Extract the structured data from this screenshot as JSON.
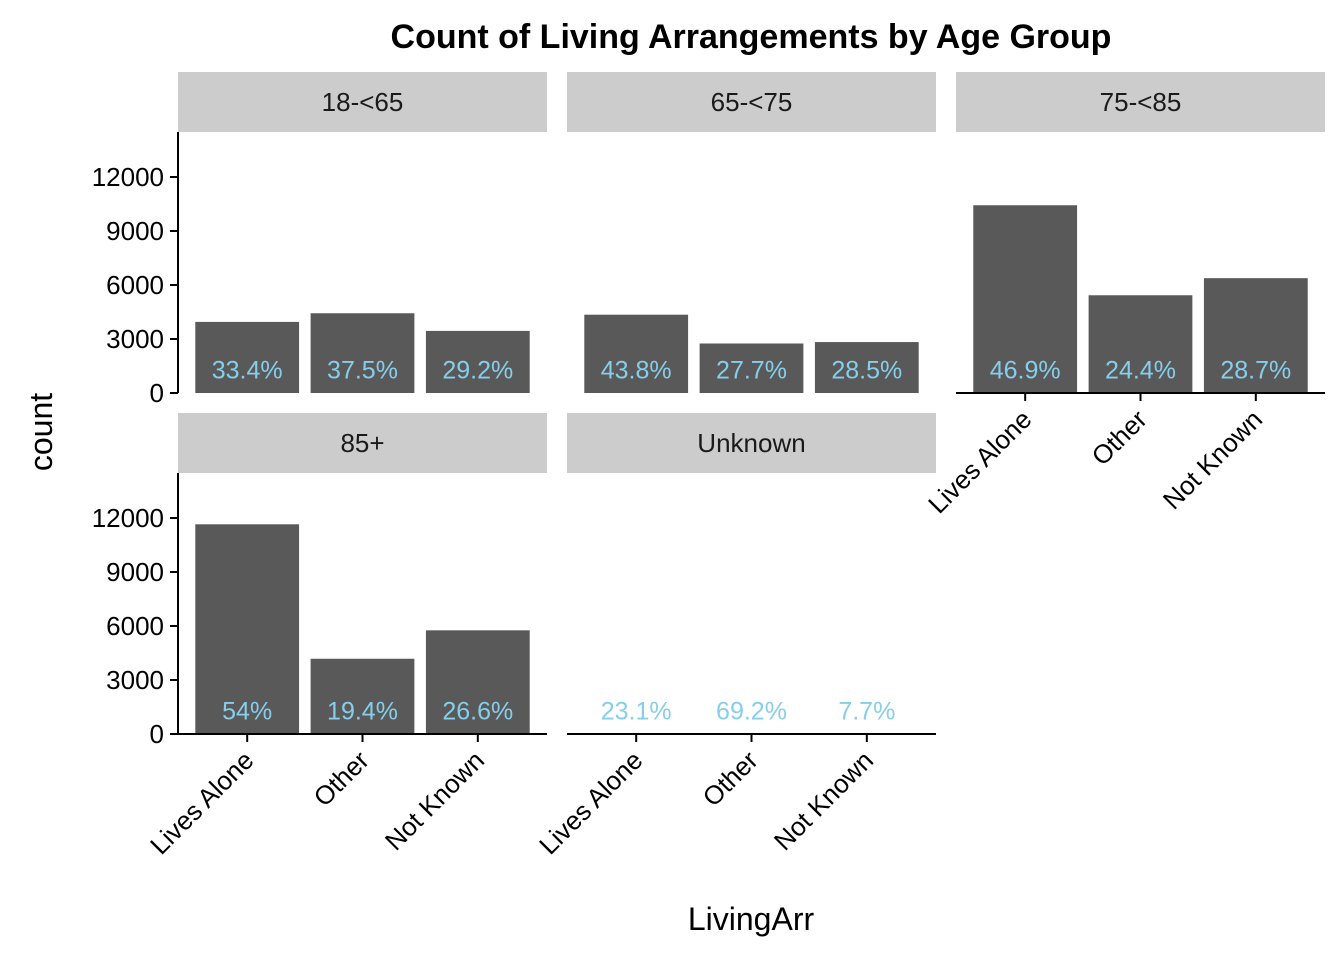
{
  "chart_data": {
    "type": "bar",
    "title": "Count of Living Arrangements by Age Group",
    "xlabel": "LivingArr",
    "ylabel": "count",
    "ylim": [
      0,
      14500
    ],
    "y_ticks": [
      0,
      3000,
      6000,
      9000,
      12000
    ],
    "categories": [
      "Lives Alone",
      "Other",
      "Not Known"
    ],
    "bar_color": "#595959",
    "label_color": "#87ceeb",
    "strip_color": "#cccccc",
    "facets": [
      {
        "name": "18-<65",
        "values": [
          3950,
          4430,
          3450
        ],
        "labels": [
          "33.4%",
          "37.5%",
          "29.2%"
        ]
      },
      {
        "name": "65-<75",
        "values": [
          4350,
          2750,
          2830
        ],
        "labels": [
          "43.8%",
          "27.7%",
          "28.5%"
        ]
      },
      {
        "name": "75-<85",
        "values": [
          10430,
          5430,
          6380
        ],
        "labels": [
          "46.9%",
          "24.4%",
          "28.7%"
        ]
      },
      {
        "name": "85+",
        "values": [
          11650,
          4180,
          5760
        ],
        "labels": [
          "54%",
          "19.4%",
          "26.6%"
        ]
      },
      {
        "name": "Unknown",
        "values": [
          3,
          9,
          1
        ],
        "labels": [
          "23.1%",
          "69.2%",
          "7.7%"
        ]
      }
    ]
  }
}
